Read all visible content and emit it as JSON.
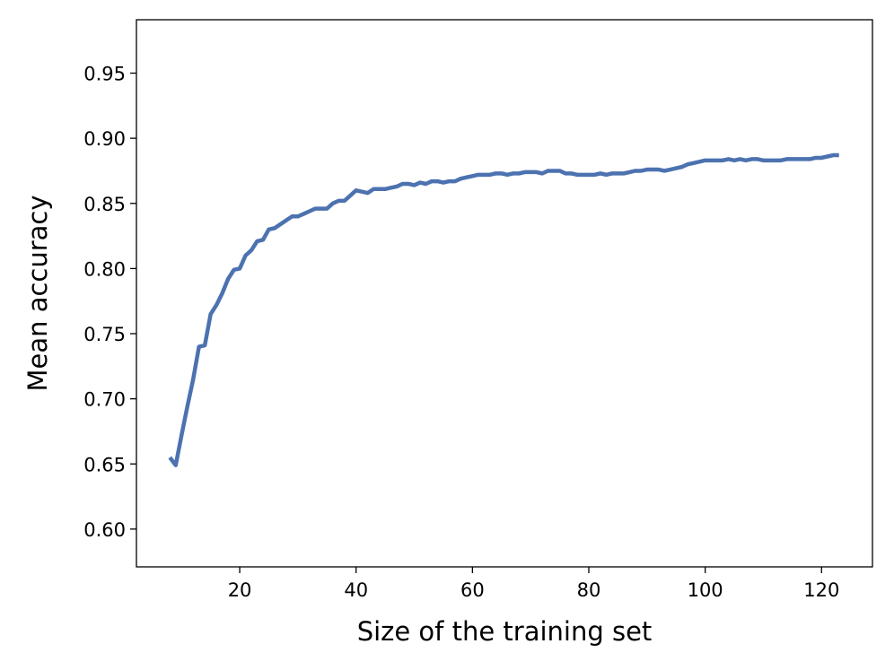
{
  "chart_data": {
    "type": "line",
    "xlabel": "Size of the training set",
    "ylabel": "Mean accuracy",
    "x": [
      8,
      9,
      10,
      11,
      12,
      13,
      14,
      15,
      16,
      17,
      18,
      19,
      20,
      21,
      22,
      23,
      24,
      25,
      26,
      27,
      28,
      29,
      30,
      31,
      32,
      33,
      34,
      35,
      36,
      37,
      38,
      39,
      40,
      41,
      42,
      43,
      44,
      45,
      46,
      47,
      48,
      49,
      50,
      51,
      52,
      53,
      54,
      55,
      56,
      57,
      58,
      59,
      60,
      61,
      62,
      63,
      64,
      65,
      66,
      67,
      68,
      69,
      70,
      71,
      72,
      73,
      74,
      75,
      76,
      77,
      78,
      79,
      80,
      81,
      82,
      83,
      84,
      85,
      86,
      87,
      88,
      89,
      90,
      91,
      92,
      93,
      94,
      95,
      96,
      97,
      98,
      99,
      100,
      101,
      102,
      103,
      104,
      105,
      106,
      107,
      108,
      109,
      110,
      111,
      112,
      113,
      114,
      115,
      116,
      117,
      118,
      119,
      120,
      121,
      122,
      123
    ],
    "series": [
      {
        "color": "#4c72b0",
        "values": [
          0.655,
          0.649,
          0.672,
          0.694,
          0.715,
          0.74,
          0.741,
          0.765,
          0.772,
          0.781,
          0.792,
          0.799,
          0.8,
          0.81,
          0.814,
          0.821,
          0.822,
          0.83,
          0.831,
          0.834,
          0.837,
          0.84,
          0.84,
          0.842,
          0.844,
          0.846,
          0.846,
          0.846,
          0.85,
          0.852,
          0.852,
          0.856,
          0.86,
          0.859,
          0.858,
          0.861,
          0.861,
          0.861,
          0.862,
          0.863,
          0.865,
          0.865,
          0.864,
          0.866,
          0.865,
          0.867,
          0.867,
          0.866,
          0.867,
          0.867,
          0.869,
          0.87,
          0.871,
          0.872,
          0.872,
          0.872,
          0.873,
          0.873,
          0.872,
          0.873,
          0.873,
          0.874,
          0.874,
          0.874,
          0.873,
          0.875,
          0.875,
          0.875,
          0.873,
          0.873,
          0.872,
          0.872,
          0.872,
          0.872,
          0.873,
          0.872,
          0.873,
          0.873,
          0.873,
          0.874,
          0.875,
          0.875,
          0.876,
          0.876,
          0.876,
          0.875,
          0.876,
          0.877,
          0.878,
          0.88,
          0.881,
          0.882,
          0.883,
          0.883,
          0.883,
          0.883,
          0.884,
          0.883,
          0.884,
          0.883,
          0.884,
          0.884,
          0.883,
          0.883,
          0.883,
          0.883,
          0.884,
          0.884,
          0.884,
          0.884,
          0.884,
          0.885,
          0.885,
          0.886,
          0.887,
          0.887
        ]
      }
    ],
    "xlim": [
      2.25,
      128.75
    ],
    "xticks": [
      20,
      40,
      60,
      80,
      100,
      120
    ],
    "ylim": [
      0.571,
      0.991
    ],
    "yticks": [
      {
        "value": 0.6,
        "label": "0.60"
      },
      {
        "value": 0.65,
        "label": "0.65"
      },
      {
        "value": 0.7,
        "label": "0.70"
      },
      {
        "value": 0.75,
        "label": "0.75"
      },
      {
        "value": 0.8,
        "label": "0.80"
      },
      {
        "value": 0.85,
        "label": "0.85"
      },
      {
        "value": 0.9,
        "label": "0.90"
      },
      {
        "value": 0.95,
        "label": "0.95"
      }
    ],
    "grid": false
  }
}
